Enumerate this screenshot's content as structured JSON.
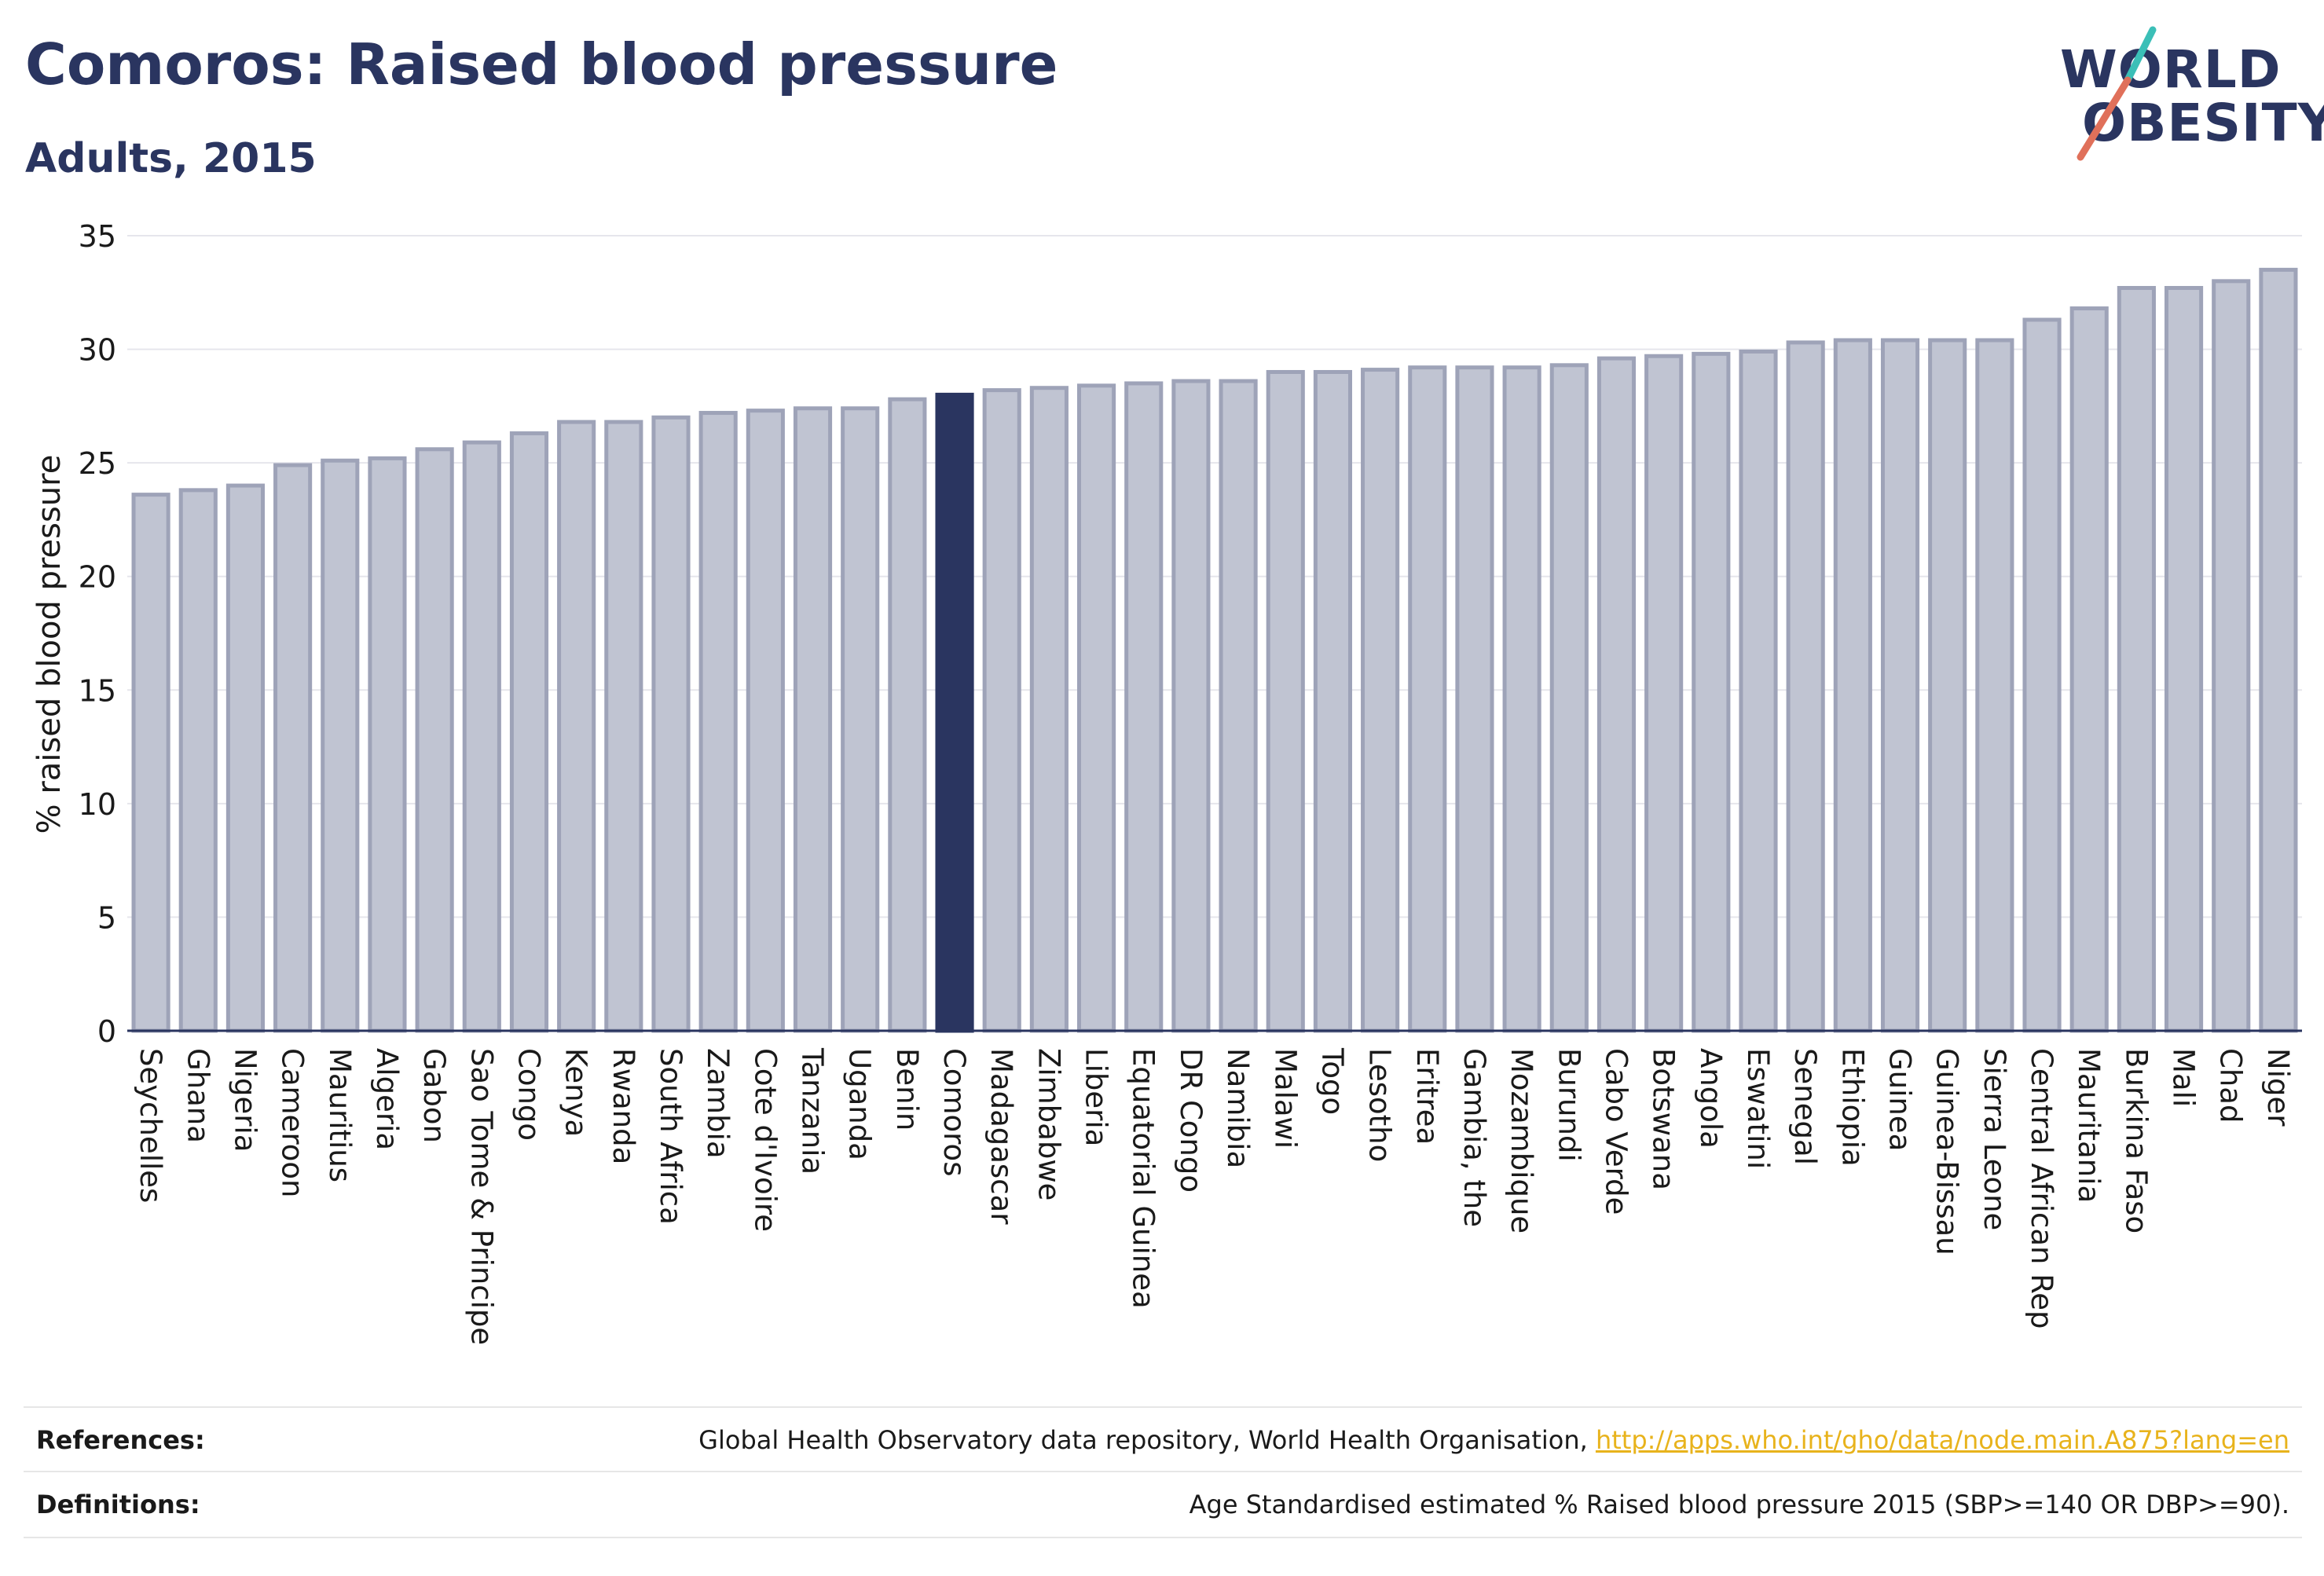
{
  "header": {
    "title": "Comoros: Raised blood pressure",
    "subtitle": "Adults, 2015"
  },
  "logo": {
    "line1": "WORLD",
    "line2": "OBESITY",
    "slash_colors": [
      "#3bbfb7",
      "#e0705a"
    ]
  },
  "colors": {
    "bar_fill": "#c0c4d2",
    "bar_stroke": "#9ea3b8",
    "highlight_fill": "#2a3560",
    "axis": "#2a3560",
    "grid": "#e6e6ec"
  },
  "chart_data": {
    "type": "bar",
    "title": "Comoros: Raised blood pressure",
    "subtitle": "Adults, 2015",
    "ylabel": "% raised blood pressure",
    "xlabel": "",
    "ylim": [
      0,
      35
    ],
    "yticks": [
      0,
      5,
      10,
      15,
      20,
      25,
      30,
      35
    ],
    "grid": true,
    "highlight": "Comoros",
    "categories": [
      "Seychelles",
      "Ghana",
      "Nigeria",
      "Cameroon",
      "Mauritius",
      "Algeria",
      "Gabon",
      "Sao Tome & Principe",
      "Congo",
      "Kenya",
      "Rwanda",
      "South Africa",
      "Zambia",
      "Cote d'Ivoire",
      "Tanzania",
      "Uganda",
      "Benin",
      "Comoros",
      "Madagascar",
      "Zimbabwe",
      "Liberia",
      "Equatorial Guinea",
      "DR Congo",
      "Namibia",
      "Malawi",
      "Togo",
      "Lesotho",
      "Eritrea",
      "Gambia, the",
      "Mozambique",
      "Burundi",
      "Cabo Verde",
      "Botswana",
      "Angola",
      "Eswatini",
      "Senegal",
      "Ethiopia",
      "Guinea",
      "Guinea-Bissau",
      "Sierra Leone",
      "Central African Rep",
      "Mauritania",
      "Burkina Faso",
      "Mali",
      "Chad",
      "Niger"
    ],
    "values": [
      23.6,
      23.8,
      24.0,
      24.9,
      25.1,
      25.2,
      25.6,
      25.9,
      26.3,
      26.8,
      26.8,
      27.0,
      27.2,
      27.3,
      27.4,
      27.4,
      27.8,
      28.0,
      28.2,
      28.3,
      28.4,
      28.5,
      28.6,
      28.6,
      29.0,
      29.0,
      29.1,
      29.2,
      29.2,
      29.2,
      29.3,
      29.6,
      29.7,
      29.8,
      29.9,
      30.3,
      30.4,
      30.4,
      30.4,
      30.4,
      31.3,
      31.8,
      32.7,
      32.7,
      33.0,
      33.5
    ]
  },
  "footer": {
    "references_label": "References:",
    "references_text": "Global Health Observatory data repository, World Health Organisation, ",
    "references_link": "http://apps.who.int/gho/data/node.main.A875?lang=en",
    "definitions_label": "Definitions:",
    "definitions_text": "Age Standardised estimated % Raised blood pressure 2015 (SBP>=140 OR DBP>=90)."
  }
}
